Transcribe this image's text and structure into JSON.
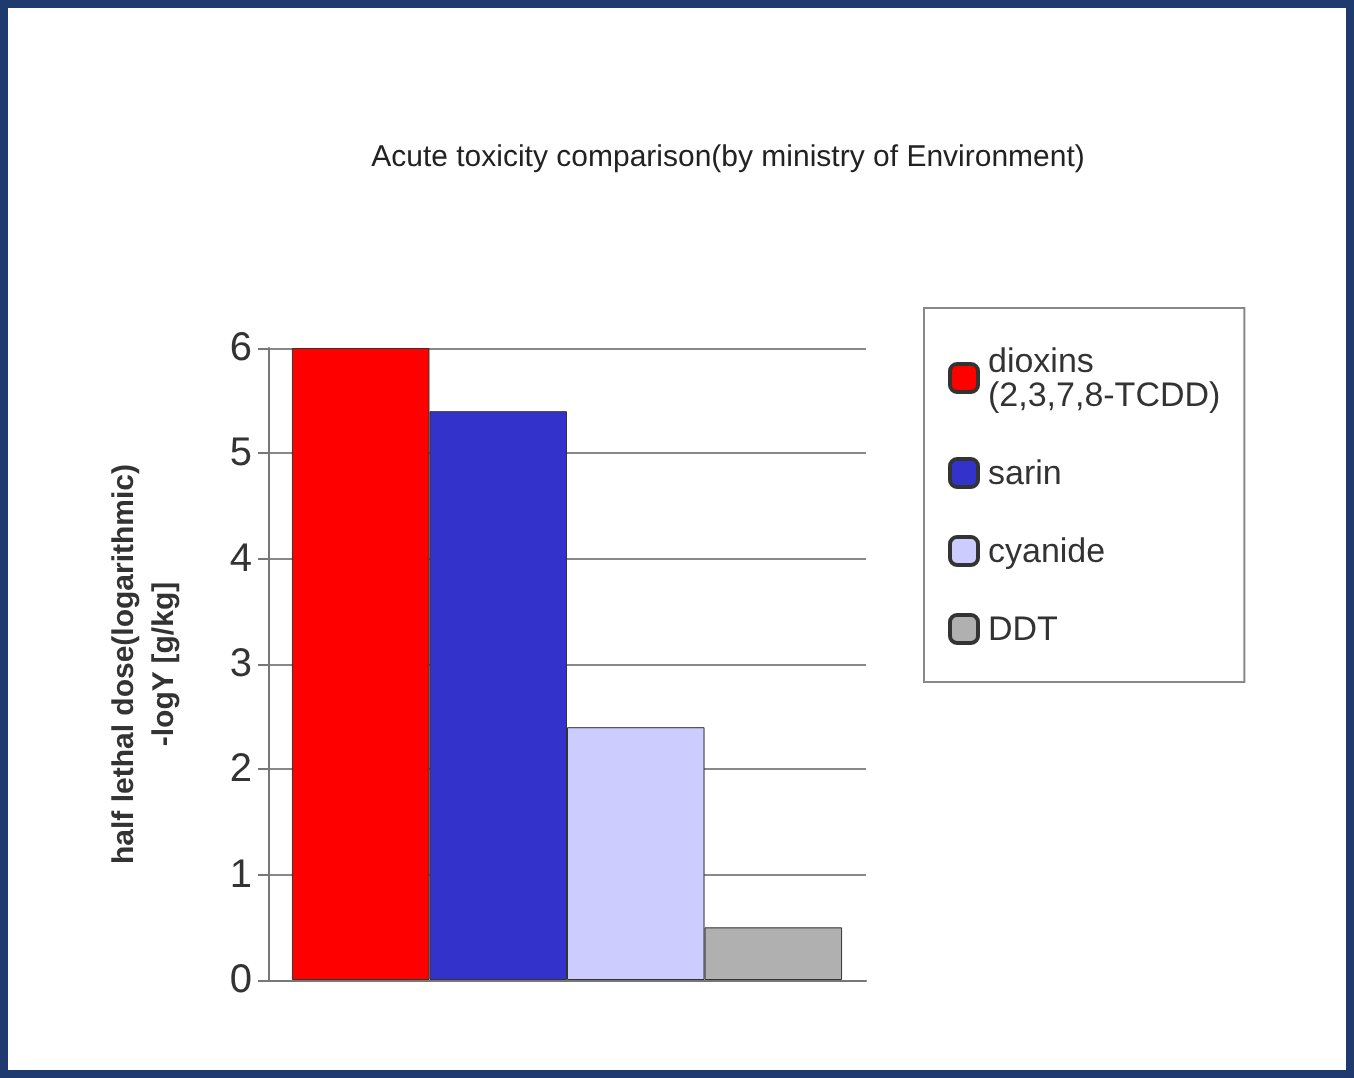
{
  "chart_data": {
    "type": "bar",
    "title": "Acute toxicity comparison(by ministry of Environment)",
    "ylabel": "half lethal dose(logarithmic)\n-logY [g/kg]",
    "categories": [
      null
    ],
    "series": [
      {
        "name": "dioxins\n(2,3,7,8-TCDD)",
        "color": "#ff0000",
        "values": [
          6
        ]
      },
      {
        "name": "sarin",
        "color": "#3333cc",
        "values": [
          5.4
        ]
      },
      {
        "name": "cyanide",
        "color": "#ccccff",
        "values": [
          2.4
        ]
      },
      {
        "name": "DDT",
        "color": "#b0b0b0",
        "values": [
          0.5
        ]
      }
    ],
    "ylim": [
      0,
      6
    ],
    "yticks": [
      0,
      1,
      2,
      3,
      4,
      5,
      6
    ],
    "grid": true,
    "legend": "right"
  }
}
